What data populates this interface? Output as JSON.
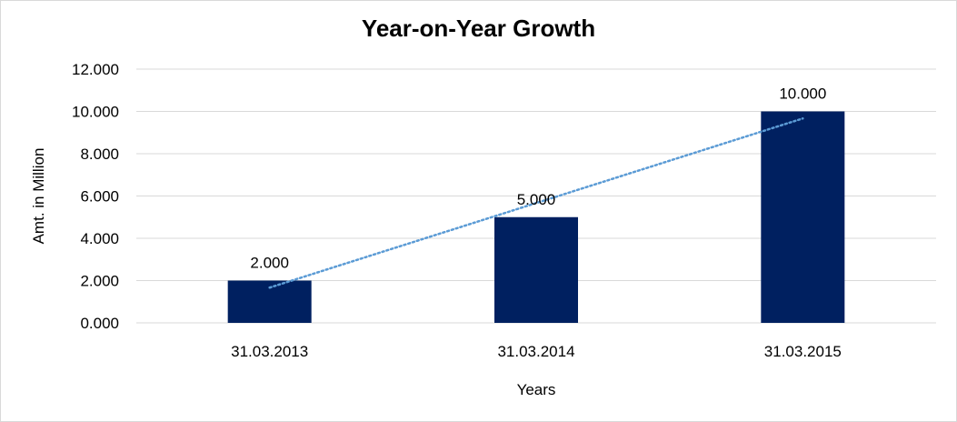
{
  "chart_data": {
    "type": "bar",
    "title": "Year-on-Year Growth",
    "xlabel": "Years",
    "ylabel": "Amt. in Million",
    "categories": [
      "31.03.2013",
      "31.03.2014",
      "31.03.2015"
    ],
    "values": [
      2,
      5,
      10
    ],
    "value_labels": [
      "2.000",
      "5.000",
      "10.000"
    ],
    "ylim": [
      0,
      12
    ],
    "yticks": [
      0,
      2,
      4,
      6,
      8,
      10,
      12
    ],
    "ytick_labels": [
      "0.000",
      "2.000",
      "4.000",
      "6.000",
      "8.000",
      "10.000",
      "12.000"
    ],
    "grid": true,
    "trendline": "linear",
    "colors": {
      "bar": "#002060",
      "trendline": "#5b9bd5",
      "grid": "#d9d9d9"
    }
  }
}
